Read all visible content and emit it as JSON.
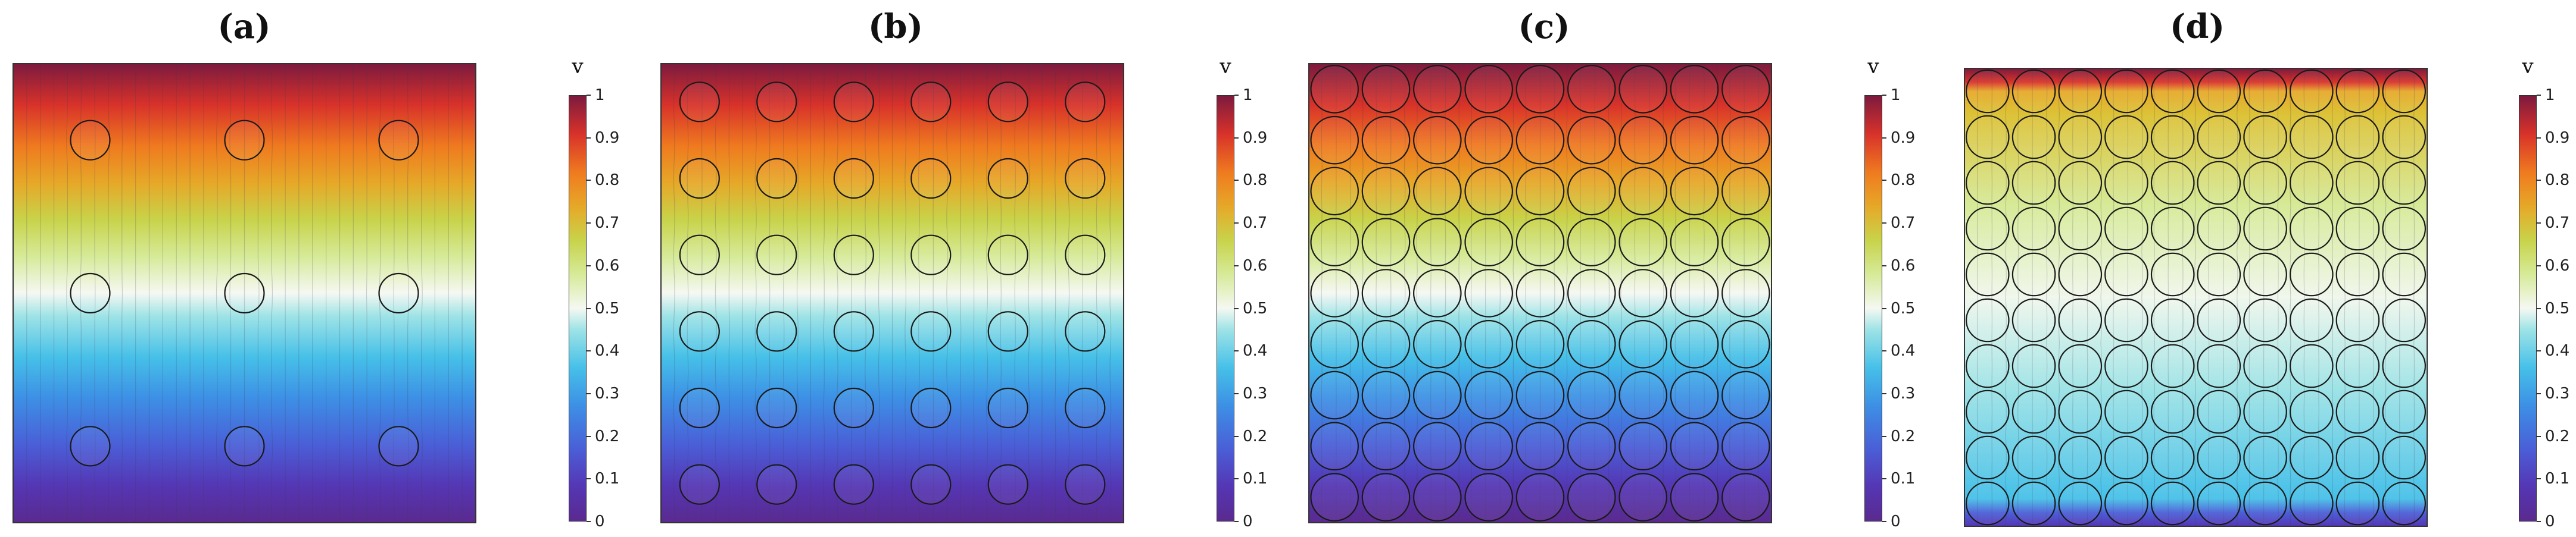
{
  "figure": {
    "panels": [
      {
        "label": "(a)",
        "grid": 3
      },
      {
        "label": "(b)",
        "grid": 6
      },
      {
        "label": "(c)",
        "grid": 9
      },
      {
        "label": "(d)",
        "grid": 10
      }
    ],
    "colorbar": {
      "title": "v",
      "ticks": [
        "0",
        "0.1",
        "0.2",
        "0.3",
        "0.4",
        "0.5",
        "0.6",
        "0.7",
        "0.8",
        "0.9",
        "1"
      ],
      "range": [
        0,
        1
      ]
    },
    "colors": {
      "stops": [
        "#5a2a8f",
        "#5536b4",
        "#4a5fd7",
        "#3d8fe5",
        "#46c0e8",
        "#9ee3e6",
        "#f5f8f2",
        "#d6ea98",
        "#c8d34a",
        "#e6a828",
        "#ef7a1f",
        "#d8322a",
        "#7c1a3e"
      ]
    }
  }
}
